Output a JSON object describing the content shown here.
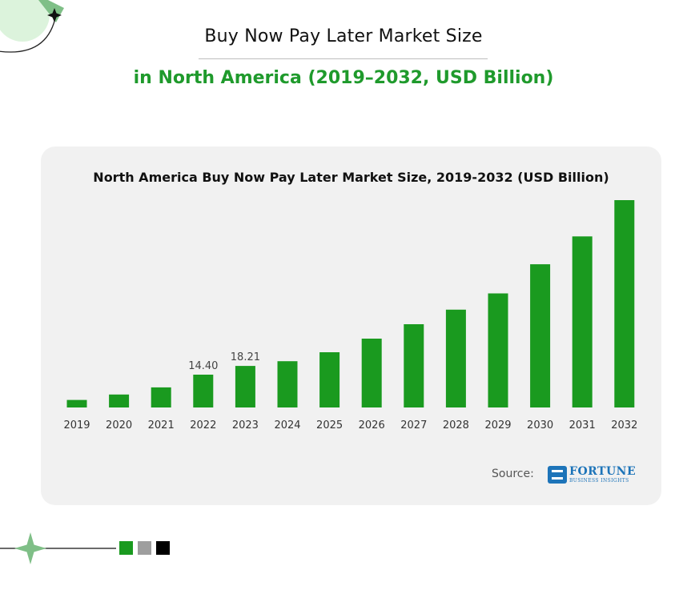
{
  "header": {
    "title": "Buy Now Pay Later Market Size",
    "subtitle": "in North America (2019–2032, USD Billion)"
  },
  "source": {
    "label": "Source:",
    "logo_word": "FORTUNE",
    "logo_sub": "BUSINESS INSIGHTS"
  },
  "colors": {
    "bar": "#1a9a1f",
    "accent_green": "#1f9a2c",
    "card_background": "#f1f1f1",
    "square_1": "#1a9a1f",
    "square_2": "#9e9e9e",
    "square_3": "#000000"
  },
  "chart_data": {
    "type": "bar",
    "title": "North America Buy Now Pay Later Market Size, 2019-2032 (USD Billion)",
    "xlabel": "",
    "ylabel": "",
    "categories": [
      "2019",
      "2020",
      "2021",
      "2022",
      "2023",
      "2024",
      "2025",
      "2026",
      "2027",
      "2028",
      "2029",
      "2030",
      "2031",
      "2032"
    ],
    "values": [
      3.3,
      5.7,
      8.8,
      14.4,
      18.21,
      20.3,
      24.2,
      30.2,
      36.5,
      42.9,
      50.0,
      62.8,
      75.0,
      90.9
    ],
    "data_labels": [
      {
        "category": "2022",
        "text": "14.40"
      },
      {
        "category": "2023",
        "text": "18.21"
      }
    ],
    "ylim": [
      0,
      90.9
    ],
    "grid": false,
    "legend": "none"
  }
}
